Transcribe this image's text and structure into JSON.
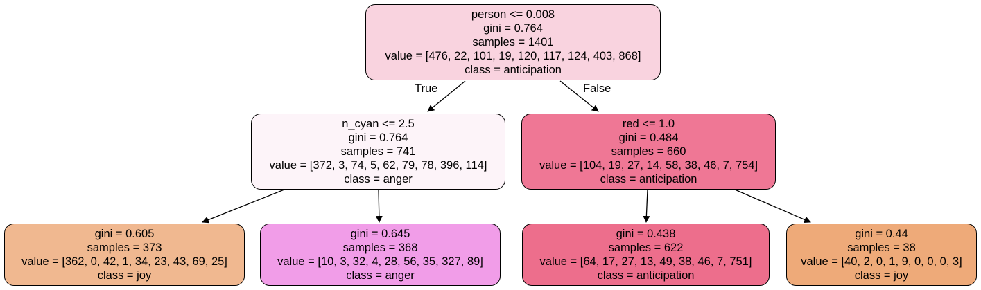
{
  "colors": {
    "root": "#f9d3df",
    "n1": "#fdf4f9",
    "n2": "#ef7795",
    "leaf_joy_1": "#f0b890",
    "leaf_anger": "#f19de8",
    "leaf_anticipation": "#ed6e8c",
    "leaf_joy_2": "#eeaa79"
  },
  "nodes": {
    "root": {
      "split": "person <= 0.008",
      "gini": "gini = 0.764",
      "samples": "samples = 1401",
      "value": "value = [476, 22, 101, 19, 120, 117, 124, 403, 868]",
      "class": "class = anticipation"
    },
    "n1": {
      "split": "n_cyan <= 2.5",
      "gini": "gini = 0.764",
      "samples": "samples = 741",
      "value": "value = [372, 3, 74, 5, 62, 79, 78, 396, 114]",
      "class": "class = anger"
    },
    "n2": {
      "split": "red <= 1.0",
      "gini": "gini = 0.484",
      "samples": "samples = 660",
      "value": "value = [104, 19, 27, 14, 58, 38, 46, 7, 754]",
      "class": "class = anticipation"
    },
    "leaf1": {
      "gini": "gini = 0.605",
      "samples": "samples = 373",
      "value": "value = [362, 0, 42, 1, 34, 23, 43, 69, 25]",
      "class": "class = joy"
    },
    "leaf2": {
      "gini": "gini = 0.645",
      "samples": "samples = 368",
      "value": "value = [10, 3, 32, 4, 28, 56, 35, 327, 89]",
      "class": "class = anger"
    },
    "leaf3": {
      "gini": "gini = 0.438",
      "samples": "samples = 622",
      "value": "value = [64, 17, 27, 13, 49, 38, 46, 7, 751]",
      "class": "class = anticipation"
    },
    "leaf4": {
      "gini": "gini = 0.44",
      "samples": "samples = 38",
      "value": "value = [40, 2, 0, 1, 9, 0, 0, 0, 3]",
      "class": "class = joy"
    }
  },
  "edge_labels": {
    "true": "True",
    "false": "False"
  }
}
